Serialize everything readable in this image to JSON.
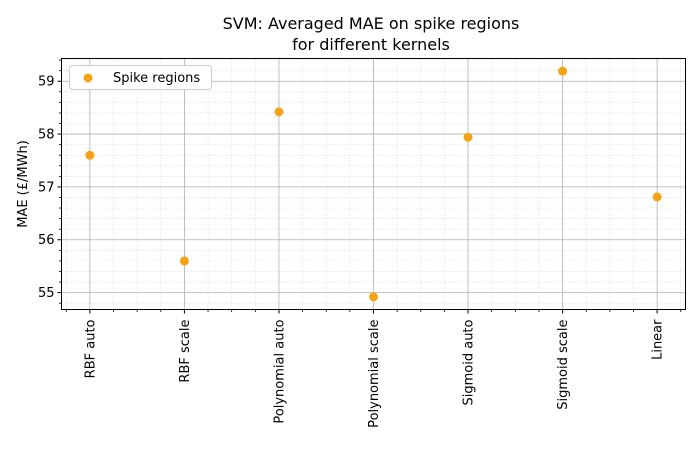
{
  "chart_data": {
    "type": "scatter",
    "title": "SVM: Averaged MAE on spike regions\nfor different kernels",
    "xlabel": "",
    "ylabel": "MAE (£/MWh)",
    "categories": [
      "RBF auto",
      "RBF scale",
      "Polynomial auto",
      "Polynomial scale",
      "Sigmoid auto",
      "Sigmoid scale",
      "Linear"
    ],
    "series": [
      {
        "name": "Spike regions",
        "color": "#f5a214",
        "values": [
          57.6,
          55.6,
          58.42,
          54.92,
          57.94,
          59.19,
          56.81
        ]
      }
    ],
    "ylim": [
      54.68,
      59.43
    ],
    "yticks": [
      55,
      56,
      57,
      58,
      59
    ],
    "grid": "major and minor",
    "legend": "top-left"
  }
}
